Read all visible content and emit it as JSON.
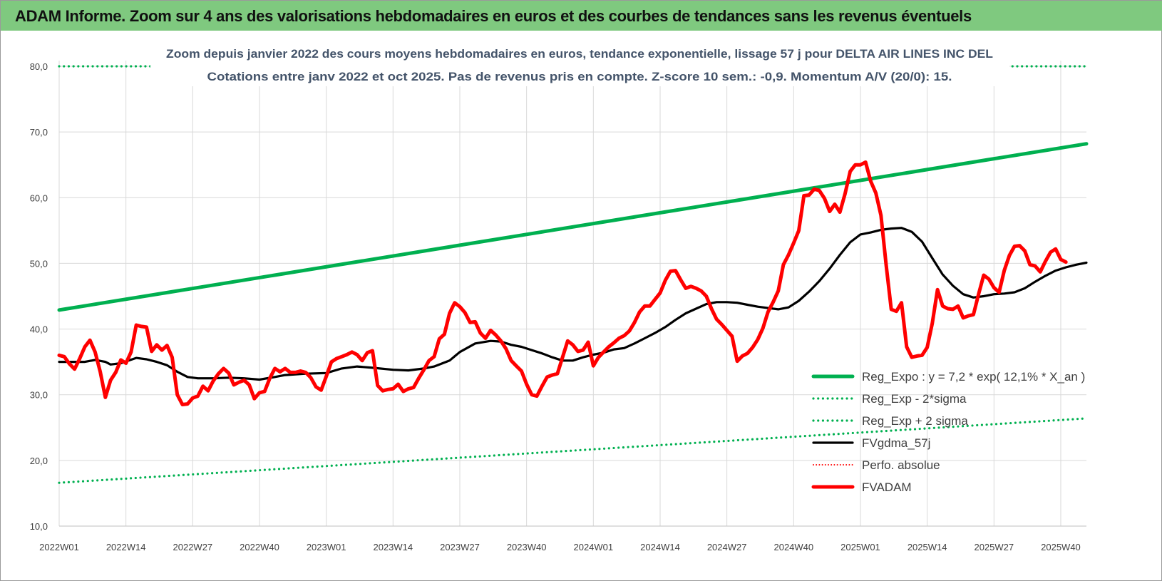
{
  "banner": {
    "title": "ADAM Informe. Zoom sur 4 ans des valorisations hebdomadaires en euros et des courbes de tendances sans les revenus éventuels"
  },
  "chart_data": {
    "type": "line",
    "title": "Zoom depuis janvier 2022 des cours moyens hebdomadaires en euros, tendance exponentielle, lissage 57 j pour DELTA AIR LINES INC DEL",
    "subtitle": "Cotations entre janv 2022 et oct 2025. Pas de revenus pris en compte. Z-score 10 sem.: -0,9. Momentum A/V (20/0): 15.",
    "xlabel": "",
    "ylabel": "",
    "ylim": [
      10,
      80
    ],
    "yticks": [
      "10,0",
      "20,0",
      "30,0",
      "40,0",
      "50,0",
      "60,0",
      "70,0",
      "80,0"
    ],
    "xticks": [
      "2022W01",
      "2022W14",
      "2022W27",
      "2022W40",
      "2023W01",
      "2023W14",
      "2023W27",
      "2023W40",
      "2024W01",
      "2024W14",
      "2024W27",
      "2024W40",
      "2025W01",
      "2025W14",
      "2025W27",
      "2025W40"
    ],
    "x_range_weeks": [
      0,
      200
    ],
    "grid": true,
    "legend_position": "bottom-right",
    "series": [
      {
        "name": "Reg_Expo : y = 7,2 * exp( 12,1% * X_an )",
        "color": "#00b050",
        "style": "solid",
        "width": "thick",
        "points": [
          [
            0,
            42.9
          ],
          [
            200,
            68.2
          ]
        ]
      },
      {
        "name": "Reg_Exp - 2*sigma",
        "color": "#00b050",
        "style": "dotted",
        "width": "medium",
        "points": [
          [
            0,
            16.6
          ],
          [
            200,
            26.4
          ]
        ]
      },
      {
        "name": "Reg_Exp + 2 sigma",
        "color": "#00b050",
        "style": "dotted",
        "width": "medium",
        "points": [
          [
            0,
            80
          ],
          [
            200,
            80
          ]
        ]
      },
      {
        "name": "FVgdma_57j",
        "color": "#000000",
        "style": "solid",
        "width": "medium",
        "points": [
          [
            0,
            35
          ],
          [
            5,
            35
          ],
          [
            7,
            35.3
          ],
          [
            9,
            35
          ],
          [
            10,
            34.6
          ],
          [
            12,
            34.8
          ],
          [
            15,
            35.6
          ],
          [
            17,
            35.4
          ],
          [
            19,
            35
          ],
          [
            21,
            34.5
          ],
          [
            23,
            33.5
          ],
          [
            25,
            32.7
          ],
          [
            27,
            32.5
          ],
          [
            30,
            32.5
          ],
          [
            33,
            32.6
          ],
          [
            36,
            32.5
          ],
          [
            39,
            32.3
          ],
          [
            42,
            32.7
          ],
          [
            44,
            33
          ],
          [
            48,
            33.2
          ],
          [
            52,
            33.3
          ],
          [
            55,
            34
          ],
          [
            58,
            34.3
          ],
          [
            61,
            34.1
          ],
          [
            65,
            33.8
          ],
          [
            68,
            33.7
          ],
          [
            71,
            34
          ],
          [
            73,
            34.3
          ],
          [
            76,
            35.2
          ],
          [
            78,
            36.5
          ],
          [
            81,
            37.8
          ],
          [
            84,
            38.2
          ],
          [
            86,
            38.1
          ],
          [
            88,
            37.6
          ],
          [
            90,
            37.3
          ],
          [
            92,
            36.8
          ],
          [
            94,
            36.3
          ],
          [
            96,
            35.7
          ],
          [
            98,
            35.2
          ],
          [
            100,
            35.2
          ],
          [
            102,
            35.7
          ],
          [
            104,
            36.1
          ],
          [
            106,
            36.4
          ],
          [
            108,
            36.9
          ],
          [
            110,
            37.1
          ],
          [
            112,
            37.8
          ],
          [
            114,
            38.6
          ],
          [
            116,
            39.4
          ],
          [
            118,
            40.3
          ],
          [
            120,
            41.4
          ],
          [
            122,
            42.4
          ],
          [
            124,
            43.1
          ],
          [
            126,
            43.8
          ],
          [
            128,
            44.1
          ],
          [
            130,
            44.1
          ],
          [
            132,
            44
          ],
          [
            134,
            43.7
          ],
          [
            136,
            43.4
          ],
          [
            138,
            43.2
          ],
          [
            140,
            43
          ],
          [
            142,
            43.3
          ],
          [
            144,
            44.3
          ],
          [
            146,
            45.7
          ],
          [
            148,
            47.3
          ],
          [
            150,
            49.2
          ],
          [
            152,
            51.3
          ],
          [
            154,
            53.2
          ],
          [
            156,
            54.4
          ],
          [
            158,
            54.7
          ],
          [
            160,
            55.1
          ],
          [
            162,
            55.3
          ],
          [
            164,
            55.4
          ],
          [
            166,
            54.8
          ],
          [
            168,
            53.3
          ],
          [
            170,
            50.8
          ],
          [
            172,
            48.3
          ],
          [
            174,
            46.6
          ],
          [
            176,
            45.3
          ],
          [
            178,
            44.8
          ],
          [
            180,
            45
          ],
          [
            182,
            45.3
          ],
          [
            184,
            45.4
          ],
          [
            186,
            45.6
          ],
          [
            188,
            46.2
          ],
          [
            190,
            47.2
          ],
          [
            192,
            48.1
          ],
          [
            194,
            48.9
          ],
          [
            196,
            49.4
          ],
          [
            198,
            49.8
          ],
          [
            200,
            50.1
          ]
        ]
      },
      {
        "name": "Perfo. absolue",
        "color": "#ff0000",
        "style": "dotted",
        "width": "thin",
        "points": []
      },
      {
        "name": "FVADAM",
        "color": "#ff0000",
        "style": "solid",
        "width": "thick",
        "points": [
          [
            0,
            36
          ],
          [
            1,
            35.8
          ],
          [
            2,
            34.7
          ],
          [
            3,
            33.9
          ],
          [
            4,
            35.5
          ],
          [
            5,
            37.3
          ],
          [
            6,
            38.3
          ],
          [
            7,
            36.5
          ],
          [
            8,
            33.5
          ],
          [
            9,
            29.6
          ],
          [
            10,
            32.2
          ],
          [
            11,
            33.4
          ],
          [
            12,
            35.3
          ],
          [
            13,
            34.8
          ],
          [
            14,
            36.5
          ],
          [
            15,
            40.6
          ],
          [
            16,
            40.4
          ],
          [
            17,
            40.3
          ],
          [
            18,
            36.6
          ],
          [
            19,
            37.6
          ],
          [
            20,
            36.8
          ],
          [
            21,
            37.5
          ],
          [
            22,
            35.7
          ],
          [
            23,
            30
          ],
          [
            24,
            28.5
          ],
          [
            25,
            28.6
          ],
          [
            26,
            29.5
          ],
          [
            27,
            29.8
          ],
          [
            28,
            31.3
          ],
          [
            29,
            30.6
          ],
          [
            30,
            32.1
          ],
          [
            31,
            33.2
          ],
          [
            32,
            34
          ],
          [
            33,
            33.3
          ],
          [
            34,
            31.5
          ],
          [
            35,
            31.9
          ],
          [
            36,
            32.2
          ],
          [
            37,
            31.5
          ],
          [
            38,
            29.4
          ],
          [
            39,
            30.3
          ],
          [
            40,
            30.5
          ],
          [
            41,
            32.5
          ],
          [
            42,
            34
          ],
          [
            43,
            33.5
          ],
          [
            44,
            34
          ],
          [
            45,
            33.4
          ],
          [
            46,
            33.4
          ],
          [
            47,
            33.6
          ],
          [
            48,
            33.4
          ],
          [
            49,
            32.6
          ],
          [
            50,
            31.2
          ],
          [
            51,
            30.7
          ],
          [
            52,
            32.8
          ],
          [
            53,
            35
          ],
          [
            54,
            35.5
          ],
          [
            55,
            35.8
          ],
          [
            56,
            36.1
          ],
          [
            57,
            36.5
          ],
          [
            58,
            36.1
          ],
          [
            59,
            35.2
          ],
          [
            60,
            36.4
          ],
          [
            61,
            36.7
          ],
          [
            62,
            31.4
          ],
          [
            63,
            30.6
          ],
          [
            64,
            30.8
          ],
          [
            65,
            30.9
          ],
          [
            66,
            31.6
          ],
          [
            67,
            30.5
          ],
          [
            68,
            30.9
          ],
          [
            69,
            31.1
          ],
          [
            70,
            32.5
          ],
          [
            71,
            33.8
          ],
          [
            72,
            35.2
          ],
          [
            73,
            35.8
          ],
          [
            74,
            38.5
          ],
          [
            75,
            39.2
          ],
          [
            76,
            42.4
          ],
          [
            77,
            44
          ],
          [
            78,
            43.4
          ],
          [
            79,
            42.5
          ],
          [
            80,
            41
          ],
          [
            81,
            41.1
          ],
          [
            82,
            39.4
          ],
          [
            83,
            38.6
          ],
          [
            84,
            39.8
          ],
          [
            85,
            39.1
          ],
          [
            86,
            38.2
          ],
          [
            87,
            37
          ],
          [
            88,
            35.2
          ],
          [
            89,
            34.4
          ],
          [
            90,
            33.6
          ],
          [
            91,
            31.6
          ],
          [
            92,
            30
          ],
          [
            93,
            29.8
          ],
          [
            94,
            31.3
          ],
          [
            95,
            32.7
          ],
          [
            96,
            33
          ],
          [
            97,
            33.2
          ],
          [
            98,
            35.7
          ],
          [
            99,
            38.2
          ],
          [
            100,
            37.6
          ],
          [
            101,
            36.6
          ],
          [
            102,
            36.8
          ],
          [
            103,
            38
          ],
          [
            104,
            34.4
          ],
          [
            105,
            35.7
          ],
          [
            106,
            36.5
          ],
          [
            107,
            37.3
          ],
          [
            108,
            37.9
          ],
          [
            109,
            38.6
          ],
          [
            110,
            39
          ],
          [
            111,
            39.7
          ],
          [
            112,
            41
          ],
          [
            113,
            42.6
          ],
          [
            114,
            43.5
          ],
          [
            115,
            43.5
          ],
          [
            116,
            44.5
          ],
          [
            117,
            45.5
          ],
          [
            118,
            47.4
          ],
          [
            119,
            48.8
          ],
          [
            120,
            48.9
          ],
          [
            121,
            47.5
          ],
          [
            122,
            46.2
          ],
          [
            123,
            46.5
          ],
          [
            124,
            46.2
          ],
          [
            125,
            45.8
          ],
          [
            126,
            45
          ],
          [
            127,
            43.1
          ],
          [
            128,
            41.5
          ],
          [
            129,
            40.7
          ],
          [
            130,
            39.8
          ],
          [
            131,
            38.9
          ],
          [
            132,
            35.1
          ],
          [
            133,
            35.9
          ],
          [
            134,
            36.3
          ],
          [
            135,
            37.2
          ],
          [
            136,
            38.4
          ],
          [
            137,
            40.1
          ],
          [
            138,
            42.6
          ],
          [
            139,
            44.1
          ],
          [
            140,
            45.8
          ],
          [
            141,
            49.8
          ],
          [
            142,
            51.3
          ],
          [
            143,
            53.1
          ],
          [
            144,
            55
          ],
          [
            145,
            60.3
          ],
          [
            146,
            60.4
          ],
          [
            147,
            61.3
          ],
          [
            148,
            61.1
          ],
          [
            149,
            59.9
          ],
          [
            150,
            57.9
          ],
          [
            151,
            59
          ],
          [
            152,
            57.8
          ],
          [
            153,
            60.6
          ],
          [
            154,
            64
          ],
          [
            155,
            65
          ],
          [
            156,
            65
          ],
          [
            157,
            65.4
          ],
          [
            158,
            62.5
          ],
          [
            159,
            60.7
          ],
          [
            160,
            57.3
          ],
          [
            161,
            49.8
          ],
          [
            162,
            43
          ],
          [
            163,
            42.7
          ],
          [
            164,
            44
          ],
          [
            165,
            37.3
          ],
          [
            166,
            35.7
          ],
          [
            167,
            35.9
          ],
          [
            168,
            36
          ],
          [
            169,
            37.2
          ],
          [
            170,
            40.9
          ],
          [
            171,
            46
          ],
          [
            172,
            43.5
          ],
          [
            173,
            43.1
          ],
          [
            174,
            43
          ],
          [
            175,
            43.5
          ],
          [
            176,
            41.7
          ],
          [
            177,
            42
          ],
          [
            178,
            42.2
          ],
          [
            179,
            45.3
          ],
          [
            180,
            48.2
          ],
          [
            181,
            47.6
          ],
          [
            182,
            46.3
          ],
          [
            183,
            45.6
          ],
          [
            184,
            48.9
          ],
          [
            185,
            51.2
          ],
          [
            186,
            52.6
          ],
          [
            187,
            52.7
          ],
          [
            188,
            51.9
          ],
          [
            189,
            49.8
          ],
          [
            190,
            49.6
          ],
          [
            191,
            48.7
          ],
          [
            192,
            50.3
          ],
          [
            193,
            51.7
          ],
          [
            194,
            52.2
          ],
          [
            195,
            50.6
          ],
          [
            196,
            50.2
          ]
        ]
      }
    ]
  }
}
